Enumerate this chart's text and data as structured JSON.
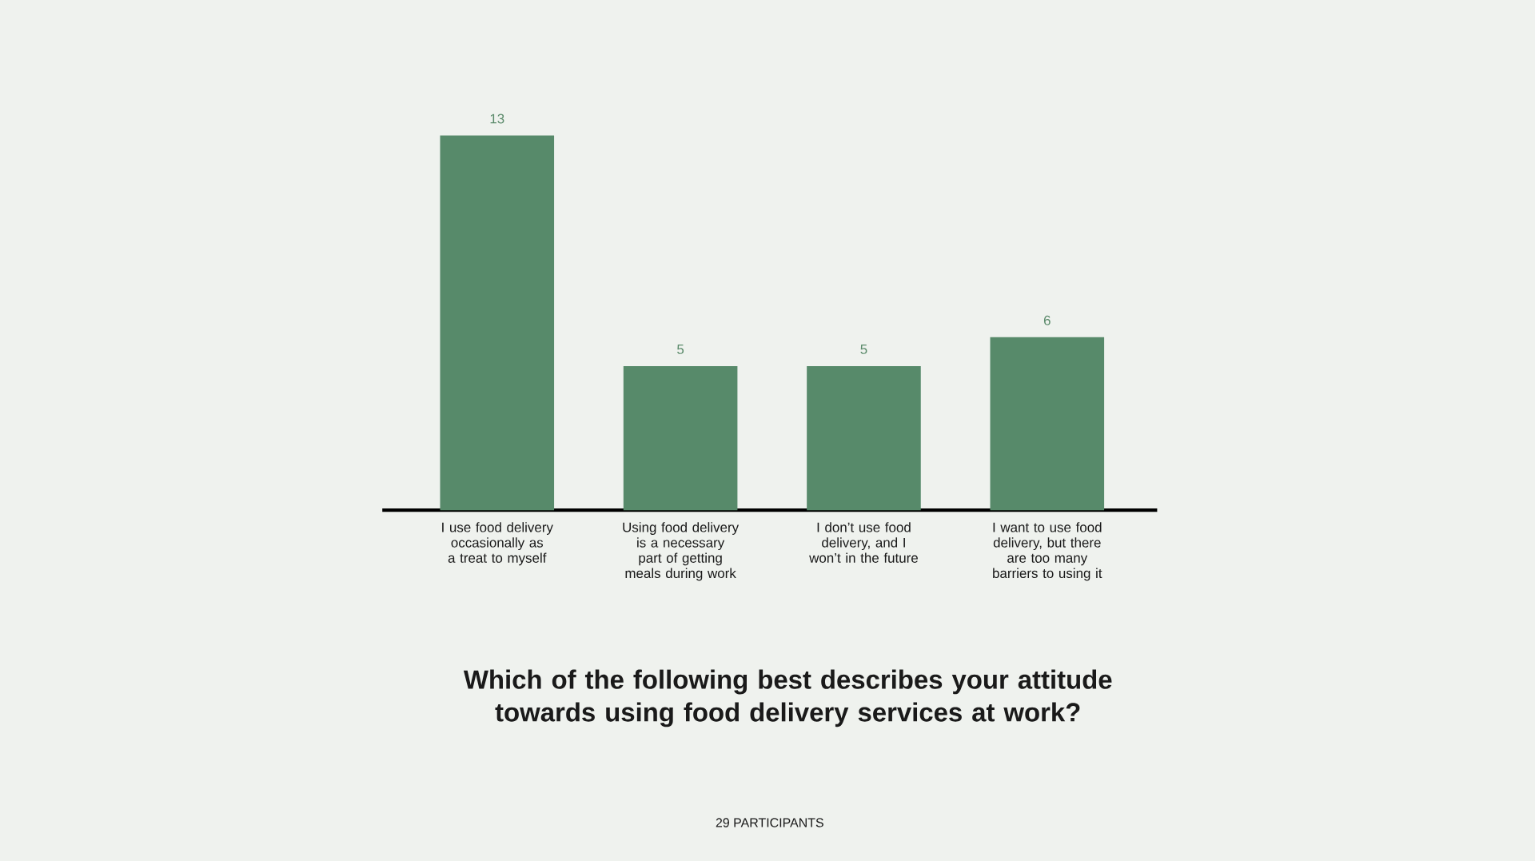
{
  "chart_data": {
    "type": "bar",
    "title": "Which of the following best describes your attitude towards using food delivery services at work?",
    "categories": [
      "I use food delivery occasionally as a treat to myself",
      "Using food delivery is a necessary part of getting meals during work",
      "I don’t use food delivery, and I won’t in the future",
      "I want to use food delivery, but there are too many barriers to using it"
    ],
    "values": [
      13,
      5,
      5,
      6
    ],
    "color": "#578a6a",
    "data_labels": true,
    "annotations": [
      "29 PARTICIPANTS"
    ]
  }
}
